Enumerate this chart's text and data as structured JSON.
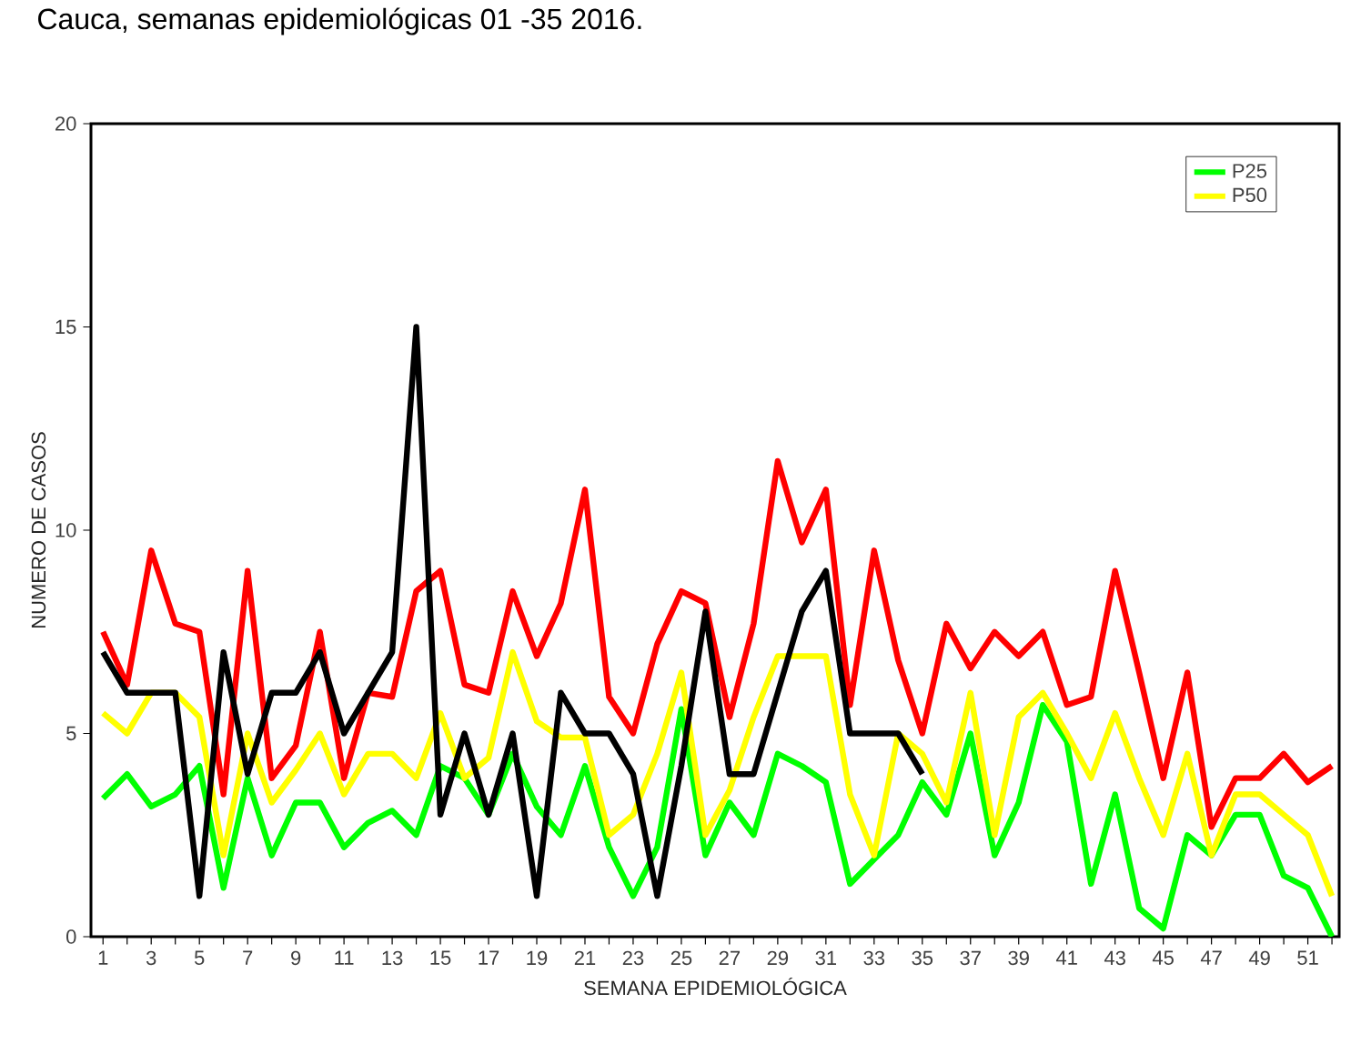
{
  "chart_data": {
    "type": "line",
    "title": "Cauca, semanas epidemiológicas 01 -35 2016.",
    "xlabel": "SEMANA EPIDEMIOLÓGICA",
    "ylabel": "NUMERO DE CASOS",
    "x": [
      1,
      2,
      3,
      4,
      5,
      6,
      7,
      8,
      9,
      10,
      11,
      12,
      13,
      14,
      15,
      16,
      17,
      18,
      19,
      20,
      21,
      22,
      23,
      24,
      25,
      26,
      27,
      28,
      29,
      30,
      31,
      32,
      33,
      34,
      35,
      36,
      37,
      38,
      39,
      40,
      41,
      42,
      43,
      44,
      45,
      46,
      47,
      48,
      49,
      50,
      51,
      52
    ],
    "xlim": [
      0.5,
      52.3
    ],
    "xticks": [
      1,
      {
        "value": 2,
        "label": null
      },
      3,
      {
        "value": 4,
        "label": null
      },
      5,
      {
        "value": 6,
        "label": null
      },
      7,
      {
        "value": 8,
        "label": null
      },
      9,
      {
        "value": 10,
        "label": null
      },
      11,
      {
        "value": 12,
        "label": null
      },
      13,
      {
        "value": 14,
        "label": null
      },
      15,
      {
        "value": 16,
        "label": null
      },
      17,
      {
        "value": 18,
        "label": null
      },
      19,
      {
        "value": 20,
        "label": null
      },
      21,
      {
        "value": 22,
        "label": null
      },
      23,
      {
        "value": 24,
        "label": null
      },
      25,
      {
        "value": 26,
        "label": null
      },
      27,
      {
        "value": 28,
        "label": null
      },
      29,
      {
        "value": 30,
        "label": null
      },
      31,
      {
        "value": 32,
        "label": null
      },
      33,
      {
        "value": 34,
        "label": null
      },
      35,
      {
        "value": 36,
        "label": null
      },
      37,
      {
        "value": 38,
        "label": null
      },
      39,
      {
        "value": 40,
        "label": null
      },
      41,
      {
        "value": 42,
        "label": null
      },
      43,
      {
        "value": 44,
        "label": null
      },
      45,
      {
        "value": 46,
        "label": null
      },
      47,
      {
        "value": 48,
        "label": null
      },
      49,
      {
        "value": 50,
        "label": null
      },
      51,
      {
        "value": 52,
        "label": null
      }
    ],
    "ylim": [
      0,
      20
    ],
    "yticks": [
      0,
      5,
      10,
      15,
      20
    ],
    "legend": "top right",
    "marker": "none",
    "line_style": "solid",
    "series": [
      {
        "name": "P25",
        "color": "#00ff00",
        "values": [
          3.4,
          4.0,
          3.2,
          3.5,
          4.2,
          1.2,
          3.9,
          2.0,
          3.3,
          3.3,
          2.2,
          2.8,
          3.1,
          2.5,
          4.2,
          3.9,
          3.0,
          4.5,
          3.2,
          2.5,
          4.2,
          2.2,
          1.0,
          2.2,
          5.6,
          2.0,
          3.3,
          2.5,
          4.5,
          4.2,
          3.8,
          1.3,
          1.9,
          2.5,
          3.8,
          3.0,
          5.0,
          2.0,
          3.3,
          5.7,
          4.8,
          1.3,
          3.5,
          0.7,
          0.2,
          2.5,
          2.0,
          3.0,
          3.0,
          1.5,
          1.2,
          0
        ]
      },
      {
        "name": "P50",
        "color": "#ffff00",
        "values": [
          5.5,
          5.0,
          6.0,
          6.0,
          5.4,
          2.0,
          5.0,
          3.3,
          4.1,
          5.0,
          3.5,
          4.5,
          4.5,
          3.9,
          5.5,
          3.9,
          4.4,
          7.0,
          5.3,
          4.9,
          4.9,
          2.5,
          3.0,
          4.5,
          6.5,
          2.5,
          3.6,
          5.4,
          6.9,
          6.9,
          6.9,
          3.5,
          2.0,
          5.0,
          4.5,
          3.3,
          6.0,
          2.5,
          5.4,
          6.0,
          5.0,
          3.9,
          5.5,
          3.9,
          2.5,
          4.5,
          2.0,
          3.5,
          3.5,
          3.0,
          2.5,
          1.0
        ]
      },
      {
        "color": "#ff0000",
        "values": [
          7.5,
          6.2,
          9.5,
          7.7,
          7.5,
          3.5,
          9.0,
          3.9,
          4.7,
          7.5,
          3.9,
          6.0,
          5.9,
          8.5,
          9.0,
          6.2,
          6.0,
          8.5,
          6.9,
          8.2,
          11.0,
          5.9,
          5.0,
          7.2,
          8.5,
          8.2,
          5.4,
          7.7,
          11.7,
          9.7,
          11.0,
          5.7,
          9.5,
          6.8,
          5.0,
          7.7,
          6.6,
          7.5,
          6.9,
          7.5,
          5.7,
          5.9,
          9.0,
          6.5,
          3.9,
          6.5,
          2.7,
          3.9,
          3.9,
          4.5,
          3.8,
          4.2
        ]
      },
      {
        "color": "#000000",
        "x": [
          1,
          2,
          3,
          4,
          5,
          6,
          7,
          8,
          9,
          10,
          11,
          12,
          13,
          14,
          15,
          16,
          17,
          18,
          19,
          20,
          21,
          22,
          23,
          24,
          25,
          26,
          27,
          28,
          29,
          30,
          31,
          32,
          33,
          34,
          35
        ],
        "values": [
          7.0,
          6.0,
          6.0,
          6.0,
          1.0,
          7.0,
          4.0,
          6.0,
          6.0,
          7.0,
          5.0,
          6.0,
          7.0,
          15.0,
          3.0,
          5.0,
          3.0,
          5.0,
          1.0,
          6.0,
          5.0,
          5.0,
          4.0,
          1.0,
          4.2,
          8.0,
          4.0,
          4.0,
          6.0,
          8.0,
          9.0,
          5.0,
          5.0,
          5.0,
          4.0
        ]
      }
    ]
  }
}
